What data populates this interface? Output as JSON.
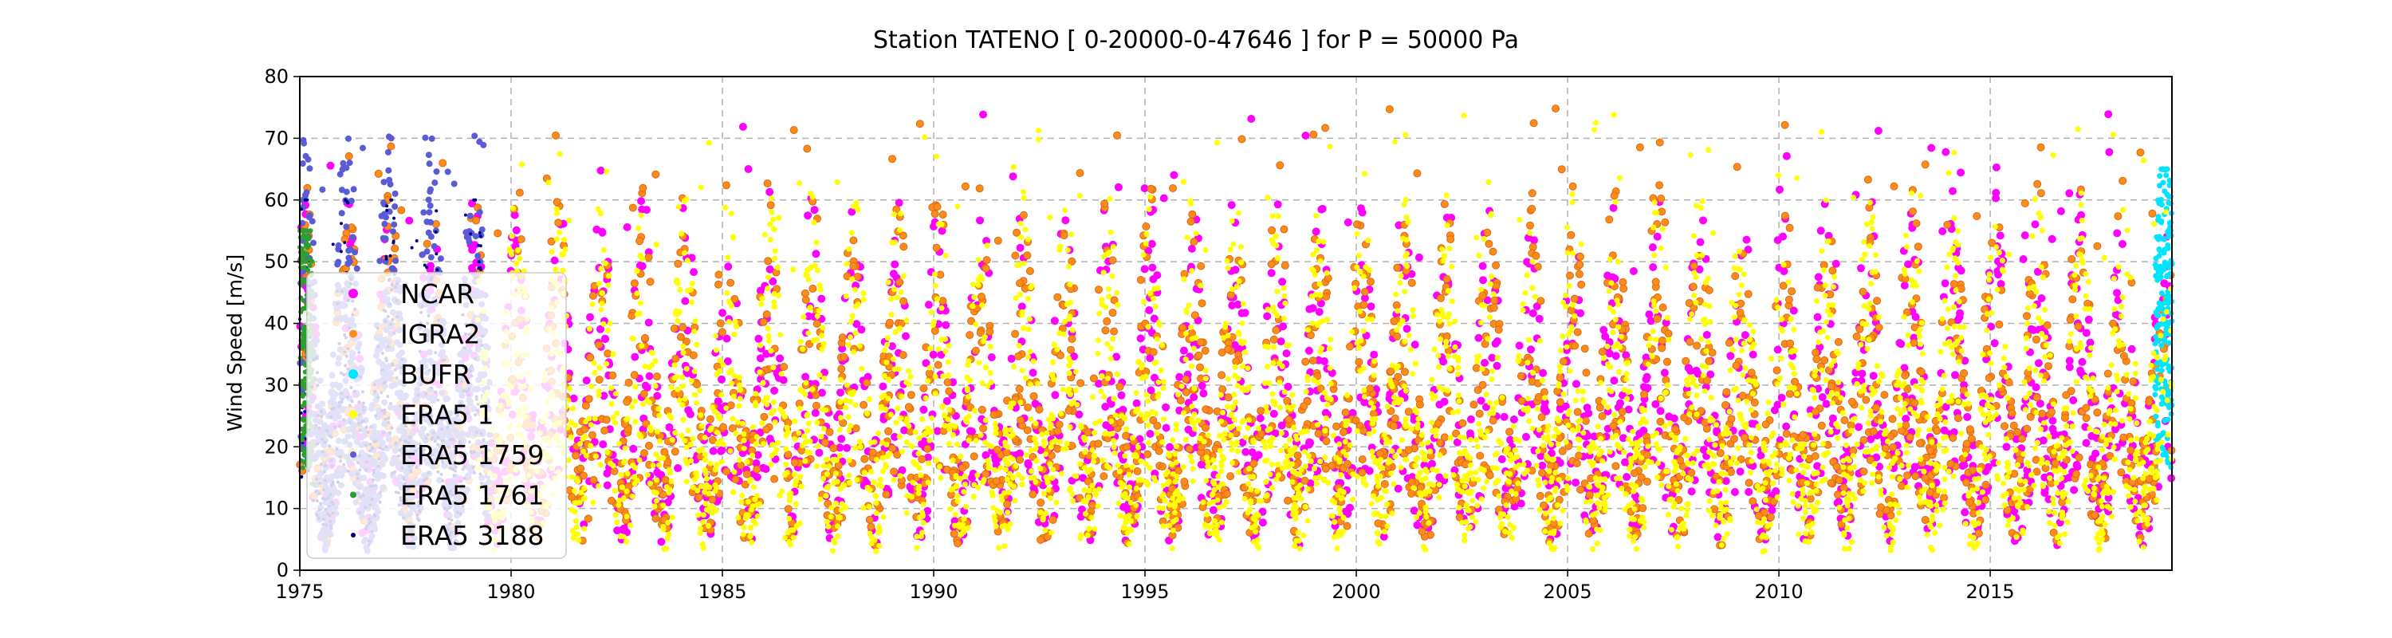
{
  "chart_data": {
    "type": "scatter",
    "title": "Station  TATENO [ 0-20000-0-47646 ]  for P = 50000 Pa",
    "xlabel": "",
    "ylabel": "Wind Speed [m/s]",
    "xlim": [
      1975,
      2019.3
    ],
    "ylim": [
      0,
      80
    ],
    "xticks": [
      1975,
      1980,
      1985,
      1990,
      1995,
      2000,
      2005,
      2010,
      2015
    ],
    "yticks": [
      0,
      10,
      20,
      30,
      40,
      50,
      60,
      70,
      80
    ],
    "grid": true,
    "legend_position": "left",
    "series": [
      {
        "name": "NCAR",
        "color": "#ff00ff",
        "period": [
          1975,
          2019.3
        ],
        "typical_range": [
          3,
          48
        ],
        "max_observed": 75
      },
      {
        "name": "IGRA2",
        "color": "#ff8c1a",
        "period": [
          1975,
          2019.3
        ],
        "typical_range": [
          3,
          50
        ],
        "max_observed": 75
      },
      {
        "name": "BUFR",
        "color": "#00e5ff",
        "period": [
          2018.9,
          2019.3
        ],
        "typical_range": [
          5,
          55
        ],
        "max_observed": 65
      },
      {
        "name": "ERA5 1",
        "color": "#ffff00",
        "period": [
          1979.2,
          2019.3
        ],
        "typical_range": [
          2,
          48
        ],
        "max_observed": 74
      },
      {
        "name": "ERA5 1759",
        "color": "#5b5bd6",
        "period": [
          1975,
          1979.5
        ],
        "typical_range": [
          2,
          55
        ],
        "max_observed": 71
      },
      {
        "name": "ERA5 1761",
        "color": "#2ca02c",
        "period": [
          1975,
          1975.3
        ],
        "typical_range": [
          5,
          50
        ],
        "max_observed": 55
      },
      {
        "name": "ERA5 3188",
        "color": "#00008b",
        "period": [
          1975,
          1979.5
        ],
        "typical_range": [
          3,
          50
        ],
        "max_observed": 60
      }
    ]
  }
}
